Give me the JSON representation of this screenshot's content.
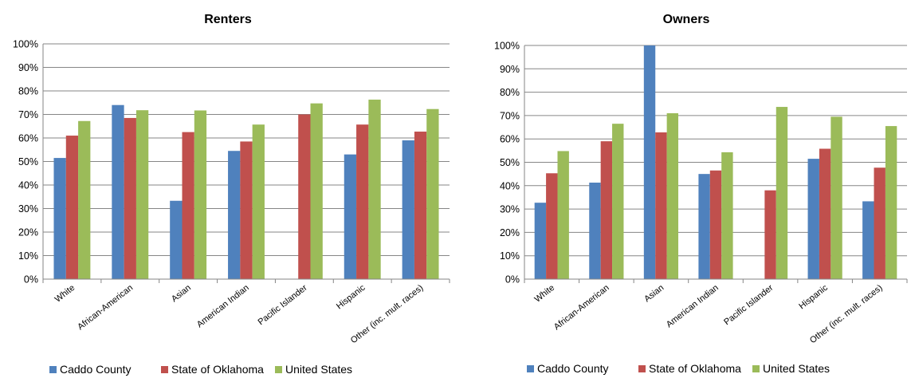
{
  "colors": {
    "caddo": "#4F81BD",
    "oklahoma": "#C0504D",
    "us": "#9BBB59",
    "grid": "#868686",
    "axis": "#868686"
  },
  "legend_position": "bottom",
  "chart_data": [
    {
      "type": "bar",
      "title": "Renters",
      "categories": [
        "White",
        "African-American",
        "Asian",
        "American Indian",
        "Pacific Islander",
        "Hispanic",
        "Other (inc. mult. races)"
      ],
      "series": [
        {
          "name": "Caddo County",
          "values": [
            51.5,
            74.0,
            33.3,
            54.5,
            0,
            53.0,
            59.0
          ]
        },
        {
          "name": "State of Oklahoma",
          "values": [
            61.0,
            68.5,
            62.5,
            58.5,
            70.0,
            65.7,
            62.7
          ]
        },
        {
          "name": "United States",
          "values": [
            67.2,
            71.8,
            71.7,
            65.7,
            74.7,
            76.3,
            72.3
          ]
        }
      ],
      "ylim": [
        0,
        100
      ],
      "yticks": [
        "0%",
        "10%",
        "20%",
        "30%",
        "40%",
        "50%",
        "60%",
        "70%",
        "80%",
        "90%",
        "100%"
      ],
      "grid": true
    },
    {
      "type": "bar",
      "title": "Owners",
      "categories": [
        "White",
        "African-American",
        "Asian",
        "American Indian",
        "Pacific Islander",
        "Hispanic",
        "Other (inc. mult. races)"
      ],
      "series": [
        {
          "name": "Caddo County",
          "values": [
            32.7,
            41.3,
            100.0,
            45.0,
            0,
            51.5,
            33.3
          ]
        },
        {
          "name": "State of Oklahoma",
          "values": [
            45.3,
            59.0,
            62.8,
            46.5,
            38.0,
            55.8,
            47.7
          ]
        },
        {
          "name": "United States",
          "values": [
            54.8,
            66.5,
            71.0,
            54.3,
            73.7,
            69.5,
            65.5
          ]
        }
      ],
      "ylim": [
        0,
        100
      ],
      "yticks": [
        "0%",
        "10%",
        "20%",
        "30%",
        "40%",
        "50%",
        "60%",
        "70%",
        "80%",
        "90%",
        "100%"
      ],
      "grid": true
    }
  ]
}
